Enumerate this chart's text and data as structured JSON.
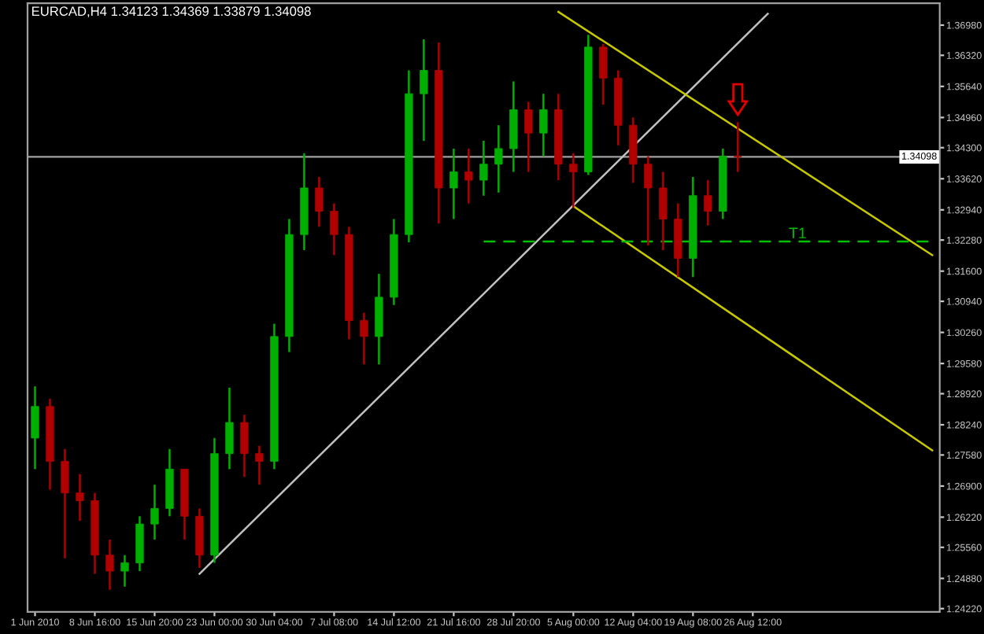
{
  "chart_data": {
    "type": "candlestick",
    "title": "EURCAD,H4 1.34123 1.34369 1.33879 1.34098",
    "categories": [
      "1 Jun 2010",
      null,
      null,
      null,
      "8 Jun 16:00",
      null,
      null,
      null,
      "15 Jun 20:00",
      null,
      null,
      null,
      "23 Jun 00:00",
      null,
      null,
      null,
      "30 Jun 04:00",
      null,
      null,
      null,
      "7 Jul 08:00",
      null,
      null,
      null,
      "14 Jul 12:00",
      null,
      null,
      null,
      "21 Jul 16:00",
      null,
      null,
      null,
      "28 Jul 20:00",
      null,
      null,
      null,
      "5 Aug 00:00",
      null,
      null,
      null,
      "12 Aug 04:00",
      null,
      null,
      null,
      "19 Aug 08:00",
      null,
      null,
      null,
      "26 Aug 12:00",
      null,
      null,
      null,
      null,
      null,
      null,
      null,
      null,
      null,
      null,
      null,
      null
    ],
    "ohlc": [
      [
        1.2795,
        1.2908,
        1.2727,
        1.2864
      ],
      [
        1.2864,
        1.2881,
        1.2682,
        1.2744
      ],
      [
        1.2744,
        1.2771,
        1.2532,
        1.2675
      ],
      [
        1.2675,
        1.2716,
        1.2614,
        1.2658
      ],
      [
        1.2658,
        1.2675,
        1.2498,
        1.2539
      ],
      [
        1.2539,
        1.2573,
        1.2463,
        1.2504
      ],
      [
        1.2504,
        1.2539,
        1.247,
        1.2522
      ],
      [
        1.2522,
        1.2624,
        1.2504,
        1.2607
      ],
      [
        1.2607,
        1.2693,
        1.2573,
        1.2641
      ],
      [
        1.2641,
        1.2771,
        1.2624,
        1.2727
      ],
      [
        1.2727,
        1.2727,
        1.2573,
        1.2624
      ],
      [
        1.2624,
        1.2641,
        1.2511,
        1.2539
      ],
      [
        1.2539,
        1.2795,
        1.2522,
        1.2761
      ],
      [
        1.2761,
        1.2905,
        1.2727,
        1.2829
      ],
      [
        1.2829,
        1.2846,
        1.271,
        1.2761
      ],
      [
        1.2761,
        1.2778,
        1.2693,
        1.2744
      ],
      [
        1.2744,
        1.3045,
        1.2727,
        1.3017
      ],
      [
        1.3017,
        1.3274,
        1.2983,
        1.324
      ],
      [
        1.324,
        1.3418,
        1.3206,
        1.3342
      ],
      [
        1.3342,
        1.3366,
        1.3257,
        1.3291
      ],
      [
        1.3291,
        1.3308,
        1.3195,
        1.324
      ],
      [
        1.324,
        1.3257,
        1.3011,
        1.3052
      ],
      [
        1.3052,
        1.3069,
        1.2956,
        1.3017
      ],
      [
        1.3017,
        1.3154,
        1.2956,
        1.3103
      ],
      [
        1.3103,
        1.3274,
        1.3086,
        1.324
      ],
      [
        1.324,
        1.3599,
        1.3223,
        1.3548
      ],
      [
        1.3548,
        1.3667,
        1.3445,
        1.3599
      ],
      [
        1.3599,
        1.366,
        1.3264,
        1.3342
      ],
      [
        1.3342,
        1.3428,
        1.3274,
        1.3377
      ],
      [
        1.3377,
        1.3428,
        1.3308,
        1.3359
      ],
      [
        1.3359,
        1.3445,
        1.3325,
        1.3394
      ],
      [
        1.3394,
        1.3479,
        1.3332,
        1.3428
      ],
      [
        1.3428,
        1.3575,
        1.3377,
        1.3513
      ],
      [
        1.3513,
        1.353,
        1.3377,
        1.3462
      ],
      [
        1.3462,
        1.3548,
        1.3411,
        1.3513
      ],
      [
        1.3513,
        1.3548,
        1.3359,
        1.3394
      ],
      [
        1.3394,
        1.3418,
        1.3298,
        1.3377
      ],
      [
        1.3377,
        1.3677,
        1.337,
        1.365
      ],
      [
        1.365,
        1.3657,
        1.3524,
        1.3582
      ],
      [
        1.3582,
        1.3599,
        1.3435,
        1.3479
      ],
      [
        1.3479,
        1.3496,
        1.3353,
        1.3394
      ],
      [
        1.3394,
        1.3411,
        1.3216,
        1.3342
      ],
      [
        1.3342,
        1.3377,
        1.3206,
        1.3274
      ],
      [
        1.3274,
        1.3308,
        1.3147,
        1.3188
      ],
      [
        1.3188,
        1.3366,
        1.3147,
        1.3325
      ],
      [
        1.3325,
        1.3359,
        1.326,
        1.3291
      ],
      [
        1.3291,
        1.3428,
        1.3274,
        1.3411
      ],
      [
        1.3411,
        1.3486,
        1.3377,
        1.341
      ],
      null,
      null,
      null,
      null,
      null,
      null,
      null,
      null,
      null,
      null,
      null,
      null,
      null
    ],
    "series": [
      {
        "type": "line",
        "color": "#c0c0c0",
        "values": [
          null,
          null,
          null,
          null,
          null,
          null,
          null,
          null,
          null,
          null,
          null,
          1.2498,
          null,
          null,
          null,
          null,
          null,
          null,
          null,
          null,
          null,
          null,
          null,
          null,
          null,
          null,
          null,
          null,
          null,
          null,
          null,
          null,
          null,
          null,
          null,
          null,
          null,
          null,
          null,
          null,
          null,
          null,
          null,
          null,
          null,
          null,
          null,
          null,
          null,
          1.3723,
          null,
          null,
          null,
          null,
          null,
          null,
          null,
          null,
          null,
          null,
          null
        ]
      },
      {
        "type": "line",
        "color": "#c8c800",
        "values": [
          null,
          null,
          null,
          null,
          null,
          null,
          null,
          null,
          null,
          null,
          null,
          null,
          null,
          null,
          null,
          null,
          null,
          null,
          null,
          null,
          null,
          null,
          null,
          null,
          null,
          null,
          null,
          null,
          null,
          null,
          null,
          null,
          null,
          null,
          null,
          1.3727,
          null,
          null,
          null,
          null,
          null,
          null,
          null,
          null,
          null,
          null,
          null,
          null,
          null,
          null,
          null,
          null,
          null,
          null,
          null,
          null,
          null,
          null,
          null,
          null,
          1.3195
        ]
      },
      {
        "type": "line",
        "color": "#c8c800",
        "values": [
          null,
          null,
          null,
          null,
          null,
          null,
          null,
          null,
          null,
          null,
          null,
          null,
          null,
          null,
          null,
          null,
          null,
          null,
          null,
          null,
          null,
          null,
          null,
          null,
          null,
          null,
          null,
          null,
          null,
          null,
          null,
          null,
          null,
          null,
          null,
          null,
          1.3302,
          null,
          null,
          null,
          null,
          null,
          null,
          null,
          null,
          null,
          null,
          null,
          null,
          null,
          null,
          null,
          null,
          null,
          null,
          null,
          null,
          null,
          null,
          null,
          1.2768
        ]
      },
      {
        "type": "line",
        "name": "T1",
        "color": "#00c000",
        "line_style": "dashed",
        "values": [
          null,
          null,
          null,
          null,
          null,
          null,
          null,
          null,
          null,
          null,
          null,
          null,
          null,
          null,
          null,
          null,
          null,
          null,
          null,
          null,
          null,
          null,
          null,
          null,
          null,
          null,
          null,
          null,
          null,
          null,
          1.3225,
          null,
          null,
          null,
          null,
          null,
          null,
          null,
          null,
          null,
          null,
          null,
          null,
          null,
          null,
          null,
          null,
          null,
          null,
          null,
          null,
          null,
          null,
          null,
          null,
          null,
          null,
          null,
          null,
          null,
          1.3225
        ]
      }
    ],
    "ref_lines": [
      {
        "axis": "y",
        "value": 1.34098,
        "label": "1.34098",
        "color": "#a0a0a0"
      }
    ],
    "ylim": [
      1.2415,
      1.3746
    ],
    "yticks": [
      {
        "value": 1.3698,
        "label": "1.36980"
      },
      {
        "value": 1.3632,
        "label": "1.36320"
      },
      {
        "value": 1.3564,
        "label": "1.35640"
      },
      {
        "value": 1.3496,
        "label": "1.34960"
      },
      {
        "value": 1.343,
        "label": "1.34300"
      },
      {
        "value": 1.3362,
        "label": "1.33620"
      },
      {
        "value": 1.3294,
        "label": "1.32940"
      },
      {
        "value": 1.3228,
        "label": "1.32280"
      },
      {
        "value": 1.316,
        "label": "1.31600"
      },
      {
        "value": 1.3094,
        "label": "1.30940"
      },
      {
        "value": 1.3026,
        "label": "1.30260"
      },
      {
        "value": 1.2958,
        "label": "1.29580"
      },
      {
        "value": 1.2892,
        "label": "1.28920"
      },
      {
        "value": 1.2824,
        "label": "1.28240"
      },
      {
        "value": 1.2758,
        "label": "1.27580"
      },
      {
        "value": 1.269,
        "label": "1.26900"
      },
      {
        "value": 1.2622,
        "label": "1.26220"
      },
      {
        "value": 1.2556,
        "label": "1.25560"
      },
      {
        "value": 1.2488,
        "label": "1.24880"
      },
      {
        "value": 1.2422,
        "label": "1.24220"
      }
    ],
    "grid": false
  }
}
